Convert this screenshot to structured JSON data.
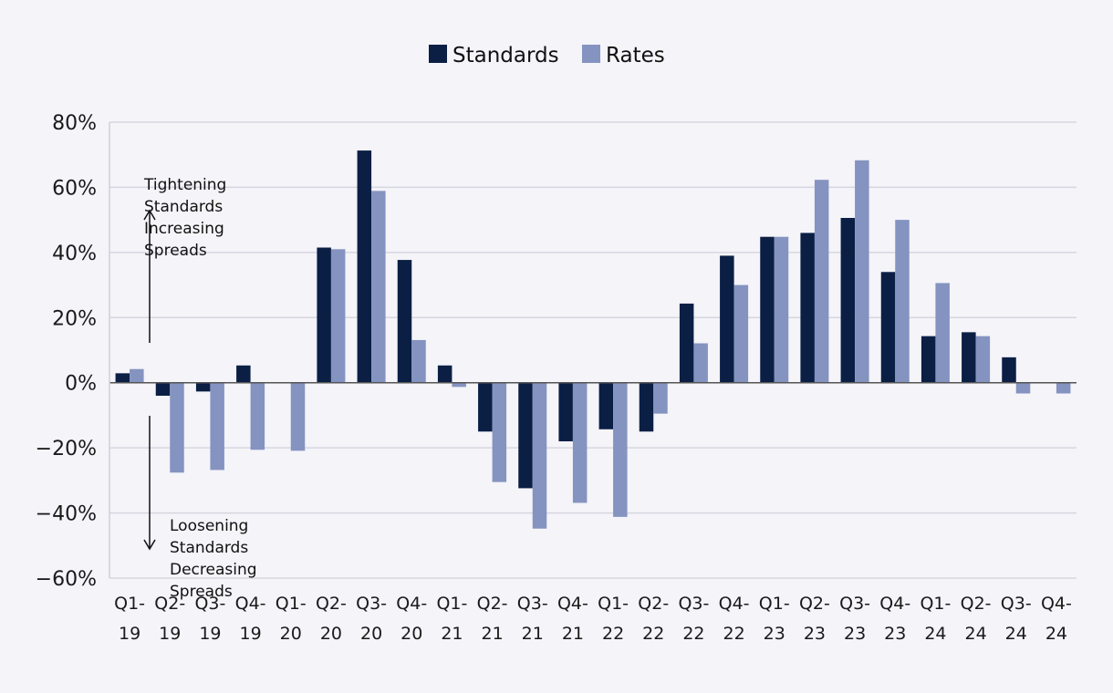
{
  "chart_data": {
    "type": "bar",
    "title": "",
    "xlabel": "",
    "ylabel": "",
    "ylim": [
      -60,
      80
    ],
    "yticks": [
      80,
      60,
      40,
      20,
      0,
      -20,
      -40,
      -60
    ],
    "ytick_labels": [
      "80%",
      "60%",
      "40%",
      "20%",
      "0%",
      "−20%",
      "−40%",
      "−60%"
    ],
    "categories": [
      [
        "Q1-",
        "19"
      ],
      [
        "Q2-",
        "19"
      ],
      [
        "Q3-",
        "19"
      ],
      [
        "Q4-",
        "19"
      ],
      [
        "Q1-",
        "20"
      ],
      [
        "Q2-",
        "20"
      ],
      [
        "Q3-",
        "20"
      ],
      [
        "Q4-",
        "20"
      ],
      [
        "Q1-",
        "21"
      ],
      [
        "Q2-",
        "21"
      ],
      [
        "Q3-",
        "21"
      ],
      [
        "Q4-",
        "21"
      ],
      [
        "Q1-",
        "22"
      ],
      [
        "Q2-",
        "22"
      ],
      [
        "Q3-",
        "22"
      ],
      [
        "Q4-",
        "22"
      ],
      [
        "Q1-",
        "23"
      ],
      [
        "Q2-",
        "23"
      ],
      [
        "Q3-",
        "23"
      ],
      [
        "Q4-",
        "23"
      ],
      [
        "Q1-",
        "24"
      ],
      [
        "Q2-",
        "24"
      ],
      [
        "Q3-",
        "24"
      ],
      [
        "Q4-",
        "24"
      ]
    ],
    "series": [
      {
        "name": "Standards",
        "color": "#0b1f45",
        "values": [
          2.9,
          -4.0,
          -2.7,
          5.3,
          0.0,
          41.5,
          71.3,
          37.7,
          5.3,
          -15.0,
          -32.4,
          -18.0,
          -14.3,
          -15.0,
          24.3,
          39.0,
          44.8,
          46.0,
          50.6,
          34.0,
          14.3,
          15.5,
          7.8,
          0.0
        ]
      },
      {
        "name": "Rates",
        "color": "#8593c1",
        "values": [
          4.2,
          -27.6,
          -26.8,
          -20.6,
          -20.9,
          41.0,
          58.9,
          13.1,
          -1.3,
          -30.5,
          -44.8,
          -36.9,
          -41.2,
          -9.5,
          12.1,
          30.0,
          44.8,
          62.3,
          68.3,
          50.0,
          30.6,
          14.3,
          -3.3,
          -3.3
        ]
      }
    ],
    "legend_position": "top-center",
    "grid": true,
    "annotations": {
      "up": [
        "Tightening",
        "Standards",
        "Increasing",
        "Spreads"
      ],
      "down": [
        "Loosening",
        "Standards",
        "Decreasing",
        "Spreads"
      ]
    }
  }
}
